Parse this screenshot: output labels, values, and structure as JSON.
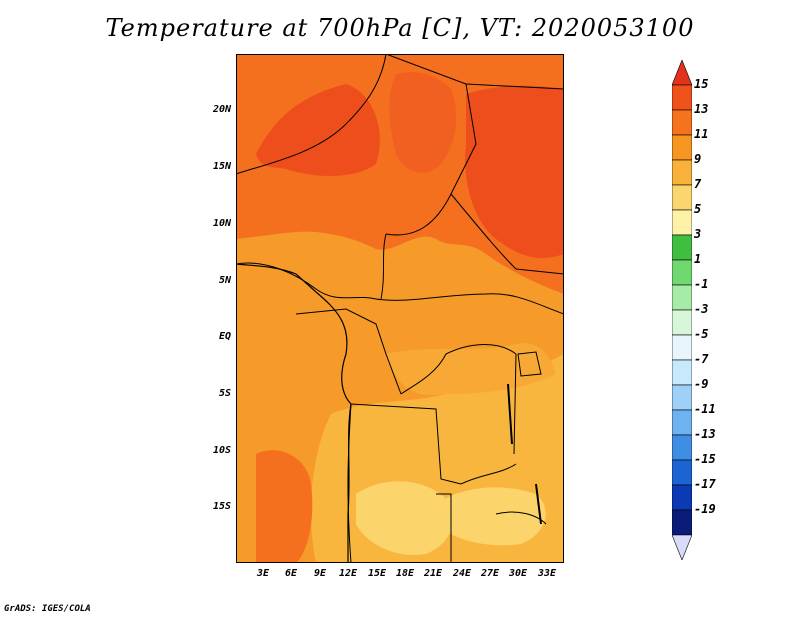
{
  "title": "Temperature at 700hPa [C], VT: 2020053100",
  "credit": "GrADS: IGES/COLA",
  "lat_labels": [
    "20N",
    "15N",
    "10N",
    "5N",
    "EQ",
    "5S",
    "10S",
    "15S"
  ],
  "lon_labels": [
    "3E",
    "6E",
    "9E",
    "12E",
    "15E",
    "18E",
    "21E",
    "24E",
    "27E",
    "30E",
    "33E"
  ],
  "colorbar": {
    "labels": [
      "15",
      "13",
      "11",
      "9",
      "7",
      "5",
      "3",
      "1",
      "-1",
      "-3",
      "-5",
      "-7",
      "-9",
      "-11",
      "-13",
      "-15",
      "-17",
      "-19"
    ],
    "colors": [
      "#e2321c",
      "#f0521c",
      "#f5731e",
      "#f6951f",
      "#f8b23a",
      "#fbd66f",
      "#fdf2a8",
      "#3fbe3f",
      "#6fd86f",
      "#a6eca6",
      "#d8f6d8",
      "#e8f6fc",
      "#c8e8fc",
      "#9ed0f8",
      "#6eb2f0",
      "#3e8ee4",
      "#1c64d4",
      "#0c3ab4",
      "#081c78",
      "#d8dcf8"
    ]
  },
  "map_colors": {
    "deep": "#ee4e1b",
    "warm": "#f4701f",
    "mid": "#f69a2a",
    "light": "#f9b63e",
    "pale": "#fbd46c",
    "border": "#000000"
  }
}
